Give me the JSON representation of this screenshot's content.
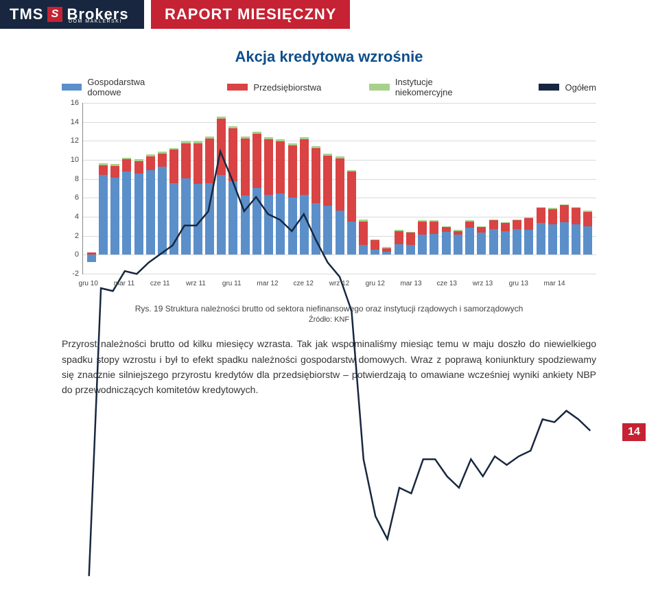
{
  "header": {
    "logo_main": "TMS",
    "logo_sub1": "Brokers",
    "logo_tag": "DOM MAKLERSKI",
    "report_title": "RAPORT MIESIĘCZNY"
  },
  "chart": {
    "title": "Akcja kredytowa wzrośnie",
    "type": "stacked-bar-with-line",
    "legend": [
      {
        "label": "Gospodarstwa domowe",
        "color": "#5b8fc9"
      },
      {
        "label": "Przedsiębiorstwa",
        "color": "#d94343"
      },
      {
        "label": "Instytucje niekomercyjne",
        "color": "#a6d18b"
      },
      {
        "label": "Ogółem",
        "color": "#18273f"
      }
    ],
    "background_color": "#ffffff",
    "grid_color": "#d9d9d9",
    "ylim": [
      -2,
      16
    ],
    "ytick_step": 2,
    "yticks": [
      -2,
      0,
      2,
      4,
      6,
      8,
      10,
      12,
      14,
      16
    ],
    "xticks_visible": [
      "gru 10",
      "mar 11",
      "cze 11",
      "wrz 11",
      "gru 11",
      "mar 12",
      "cze 12",
      "wrz 12",
      "gru 12",
      "mar 13",
      "cze 13",
      "wrz 13",
      "gru 13",
      "mar 14"
    ],
    "series_colors": {
      "households": "#5b8fc9",
      "enterprises": "#d94343",
      "noncommercial": "#a6d18b",
      "total_line": "#18273f"
    },
    "line_width": 2.5,
    "bars": [
      {
        "h": -0.8,
        "e": 0.2,
        "n": 0.0,
        "t": -0.6,
        "xl": "gru 10"
      },
      {
        "h": 8.4,
        "e": 1.0,
        "n": 0.2,
        "t": 9.5
      },
      {
        "h": 8.1,
        "e": 1.2,
        "n": 0.2,
        "t": 9.4
      },
      {
        "h": 8.7,
        "e": 1.3,
        "n": 0.2,
        "t": 10.1,
        "xl": "mar 11"
      },
      {
        "h": 8.5,
        "e": 1.3,
        "n": 0.2,
        "t": 10.0
      },
      {
        "h": 8.9,
        "e": 1.4,
        "n": 0.2,
        "t": 10.4
      },
      {
        "h": 9.2,
        "e": 1.4,
        "n": 0.2,
        "t": 10.7,
        "xl": "cze 11"
      },
      {
        "h": 7.5,
        "e": 3.5,
        "n": 0.2,
        "t": 11.0
      },
      {
        "h": 8.0,
        "e": 3.7,
        "n": 0.2,
        "t": 11.7
      },
      {
        "h": 7.4,
        "e": 4.3,
        "n": 0.2,
        "t": 11.7,
        "xl": "wrz 11"
      },
      {
        "h": 7.5,
        "e": 4.7,
        "n": 0.2,
        "t": 12.2
      },
      {
        "h": 8.4,
        "e": 5.9,
        "n": 0.2,
        "t": 14.3
      },
      {
        "h": 7.7,
        "e": 5.6,
        "n": 0.2,
        "t": 13.3,
        "xl": "gru 11"
      },
      {
        "h": 6.2,
        "e": 6.0,
        "n": 0.2,
        "t": 12.2
      },
      {
        "h": 7.0,
        "e": 5.7,
        "n": 0.2,
        "t": 12.7
      },
      {
        "h": 6.3,
        "e": 5.8,
        "n": 0.2,
        "t": 12.1,
        "xl": "mar 12"
      },
      {
        "h": 6.4,
        "e": 5.5,
        "n": 0.2,
        "t": 11.9
      },
      {
        "h": 6.0,
        "e": 5.5,
        "n": 0.2,
        "t": 11.5
      },
      {
        "h": 6.3,
        "e": 5.8,
        "n": 0.2,
        "t": 12.1,
        "xl": "cze 12"
      },
      {
        "h": 5.4,
        "e": 5.8,
        "n": 0.2,
        "t": 11.2
      },
      {
        "h": 5.1,
        "e": 5.3,
        "n": 0.2,
        "t": 10.4
      },
      {
        "h": 4.6,
        "e": 5.5,
        "n": 0.2,
        "t": 9.9,
        "xl": "wrz 12"
      },
      {
        "h": 3.5,
        "e": 5.2,
        "n": 0.2,
        "t": 8.7
      },
      {
        "h": 1.0,
        "e": 2.5,
        "n": 0.2,
        "t": 3.5
      },
      {
        "h": 0.5,
        "e": 1.0,
        "n": 0.1,
        "t": 1.5,
        "xl": "gru 12"
      },
      {
        "h": 0.3,
        "e": 0.4,
        "n": 0.1,
        "t": 0.7
      },
      {
        "h": 1.1,
        "e": 1.4,
        "n": 0.1,
        "t": 2.5
      },
      {
        "h": 1.0,
        "e": 1.3,
        "n": 0.1,
        "t": 2.3,
        "xl": "mar 13"
      },
      {
        "h": 2.1,
        "e": 1.4,
        "n": 0.1,
        "t": 3.5
      },
      {
        "h": 2.2,
        "e": 1.3,
        "n": 0.1,
        "t": 3.5
      },
      {
        "h": 2.4,
        "e": 0.5,
        "n": 0.1,
        "t": 2.9,
        "xl": "cze 13"
      },
      {
        "h": 2.1,
        "e": 0.4,
        "n": 0.1,
        "t": 2.5
      },
      {
        "h": 2.8,
        "e": 0.7,
        "n": 0.1,
        "t": 3.5
      },
      {
        "h": 2.3,
        "e": 0.6,
        "n": 0.1,
        "t": 2.9,
        "xl": "wrz 13"
      },
      {
        "h": 2.7,
        "e": 0.9,
        "n": 0.1,
        "t": 3.6
      },
      {
        "h": 2.5,
        "e": 0.8,
        "n": 0.1,
        "t": 3.3
      },
      {
        "h": 2.7,
        "e": 0.9,
        "n": 0.1,
        "t": 3.6,
        "xl": "gru 13"
      },
      {
        "h": 2.6,
        "e": 1.2,
        "n": 0.1,
        "t": 3.8
      },
      {
        "h": 3.3,
        "e": 1.6,
        "n": 0.1,
        "t": 4.9
      },
      {
        "h": 3.2,
        "e": 1.6,
        "n": 0.1,
        "t": 4.8,
        "xl": "mar 14"
      },
      {
        "h": 3.4,
        "e": 1.8,
        "n": 0.1,
        "t": 5.2
      },
      {
        "h": 3.2,
        "e": 1.7,
        "n": 0.1,
        "t": 4.9
      },
      {
        "h": 3.0,
        "e": 1.5,
        "n": 0.1,
        "t": 4.5
      }
    ]
  },
  "caption": {
    "line1": "Rys. 19 Struktura należności brutto od sektora niefinansowego oraz instytucji rządowych i samorządowych",
    "line2": "Źródło: KNF"
  },
  "body": "Przyrost należności brutto od kilku miesięcy wzrasta. Tak jak wspominaliśmy miesiąc temu w maju doszło do niewielkiego spadku stopy wzrostu i był to efekt spadku należności gospodarstw domowych. Wraz z poprawą koniunktury spodziewamy się znacznie silniejszego przyrostu kredytów dla przedsiębiorstw – potwierdzają to omawiane wcześniej wyniki ankiety NBP do przewodniczących komitetów kredytowych.",
  "page_number": "14"
}
